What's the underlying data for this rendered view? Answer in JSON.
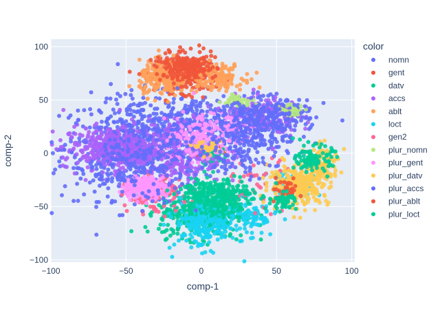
{
  "chart_data": {
    "type": "scatter",
    "xlabel": "comp-1",
    "ylabel": "comp-2",
    "xlim": [
      -100,
      102
    ],
    "ylim": [
      -102,
      107
    ],
    "xticks": [
      -100,
      -50,
      0,
      50,
      100
    ],
    "yticks": [
      -100,
      -50,
      0,
      50,
      100
    ],
    "xtick_labels": [
      "−100",
      "−50",
      "0",
      "50",
      "100"
    ],
    "ytick_labels": [
      "−100",
      "−50",
      "0",
      "50",
      "100"
    ],
    "grid": true,
    "legend": {
      "title": "color",
      "position": "right"
    },
    "series": [
      {
        "name": "nomn",
        "color": "#636efa",
        "clusters": [
          {
            "cx": -45,
            "cy": 5,
            "sx": 24,
            "sy": 24,
            "n": 500
          },
          {
            "cx": -10,
            "cy": 20,
            "sx": 22,
            "sy": 18,
            "n": 300
          },
          {
            "cx": 25,
            "cy": 25,
            "sx": 15,
            "sy": 15,
            "n": 150
          },
          {
            "cx": 55,
            "cy": 40,
            "sx": 10,
            "sy": 6,
            "n": 80
          }
        ]
      },
      {
        "name": "gent",
        "color": "#ef553b",
        "clusters": [
          {
            "cx": -10,
            "cy": 75,
            "sx": 10,
            "sy": 9,
            "n": 320
          },
          {
            "cx": 5,
            "cy": 0,
            "sx": 5,
            "sy": 4,
            "n": 25
          }
        ]
      },
      {
        "name": "datv",
        "color": "#00cc96",
        "clusters": [
          {
            "cx": 0,
            "cy": -55,
            "sx": 14,
            "sy": 12,
            "n": 450
          },
          {
            "cx": 5,
            "cy": 0,
            "sx": 4,
            "sy": 4,
            "n": 60
          }
        ]
      },
      {
        "name": "accs",
        "color": "#ab63fa",
        "clusters": [
          {
            "cx": -60,
            "cy": 5,
            "sx": 16,
            "sy": 10,
            "n": 400
          },
          {
            "cx": -15,
            "cy": 0,
            "sx": 15,
            "sy": 15,
            "n": 250
          },
          {
            "cx": 40,
            "cy": 35,
            "sx": 12,
            "sy": 10,
            "n": 150
          }
        ]
      },
      {
        "name": "ablt",
        "color": "#ffa15a",
        "clusters": [
          {
            "cx": -25,
            "cy": 70,
            "sx": 8,
            "sy": 8,
            "n": 220
          },
          {
            "cx": 10,
            "cy": 72,
            "sx": 9,
            "sy": 6,
            "n": 150
          }
        ]
      },
      {
        "name": "loct",
        "color": "#19d3f3",
        "clusters": [
          {
            "cx": 3,
            "cy": -65,
            "sx": 10,
            "sy": 12,
            "n": 260
          },
          {
            "cx": 30,
            "cy": -60,
            "sx": 10,
            "sy": 8,
            "n": 120
          },
          {
            "cx": 60,
            "cy": -30,
            "sx": 8,
            "sy": 8,
            "n": 60
          }
        ]
      },
      {
        "name": "gen2",
        "color": "#ff6692",
        "clusters": [
          {
            "cx": -30,
            "cy": -40,
            "sx": 10,
            "sy": 8,
            "n": 100
          },
          {
            "cx": 40,
            "cy": -30,
            "sx": 12,
            "sy": 12,
            "n": 40
          }
        ]
      },
      {
        "name": "plur_nomn",
        "color": "#b6e880",
        "clusters": [
          {
            "cx": 25,
            "cy": 50,
            "sx": 5,
            "sy": 3,
            "n": 40
          },
          {
            "cx": 60,
            "cy": 40,
            "sx": 4,
            "sy": 3,
            "n": 30
          }
        ]
      },
      {
        "name": "plur_gent",
        "color": "#ff97ff",
        "clusters": [
          {
            "cx": -38,
            "cy": -32,
            "sx": 7,
            "sy": 5,
            "n": 250
          },
          {
            "cx": 10,
            "cy": 20,
            "sx": 12,
            "sy": 12,
            "n": 120
          },
          {
            "cx": -10,
            "cy": 10,
            "sx": 10,
            "sy": 8,
            "n": 80
          }
        ]
      },
      {
        "name": "plur_datv",
        "color": "#fecb52",
        "clusters": [
          {
            "cx": 65,
            "cy": -30,
            "sx": 10,
            "sy": 9,
            "n": 300
          },
          {
            "cx": 80,
            "cy": -10,
            "sx": 6,
            "sy": 8,
            "n": 120
          },
          {
            "cx": 5,
            "cy": 5,
            "sx": 4,
            "sy": 3,
            "n": 30
          }
        ]
      },
      {
        "name": "plur_accs",
        "color": "#636efa",
        "clusters": [
          {
            "cx": -40,
            "cy": -5,
            "sx": 20,
            "sy": 20,
            "n": 250
          },
          {
            "cx": 40,
            "cy": 30,
            "sx": 15,
            "sy": 10,
            "n": 200
          },
          {
            "cx": 30,
            "cy": 5,
            "sx": 15,
            "sy": 15,
            "n": 120
          }
        ]
      },
      {
        "name": "plur_ablt",
        "color": "#ef553b",
        "clusters": [
          {
            "cx": -10,
            "cy": 80,
            "sx": 10,
            "sy": 6,
            "n": 150
          },
          {
            "cx": 55,
            "cy": -35,
            "sx": 5,
            "sy": 5,
            "n": 40
          }
        ]
      },
      {
        "name": "plur_loct",
        "color": "#00cc96",
        "clusters": [
          {
            "cx": 10,
            "cy": -40,
            "sx": 12,
            "sy": 10,
            "n": 250
          },
          {
            "cx": 75,
            "cy": -5,
            "sx": 6,
            "sy": 6,
            "n": 100
          },
          {
            "cx": 55,
            "cy": -45,
            "sx": 4,
            "sy": 4,
            "n": 50
          }
        ]
      }
    ]
  }
}
